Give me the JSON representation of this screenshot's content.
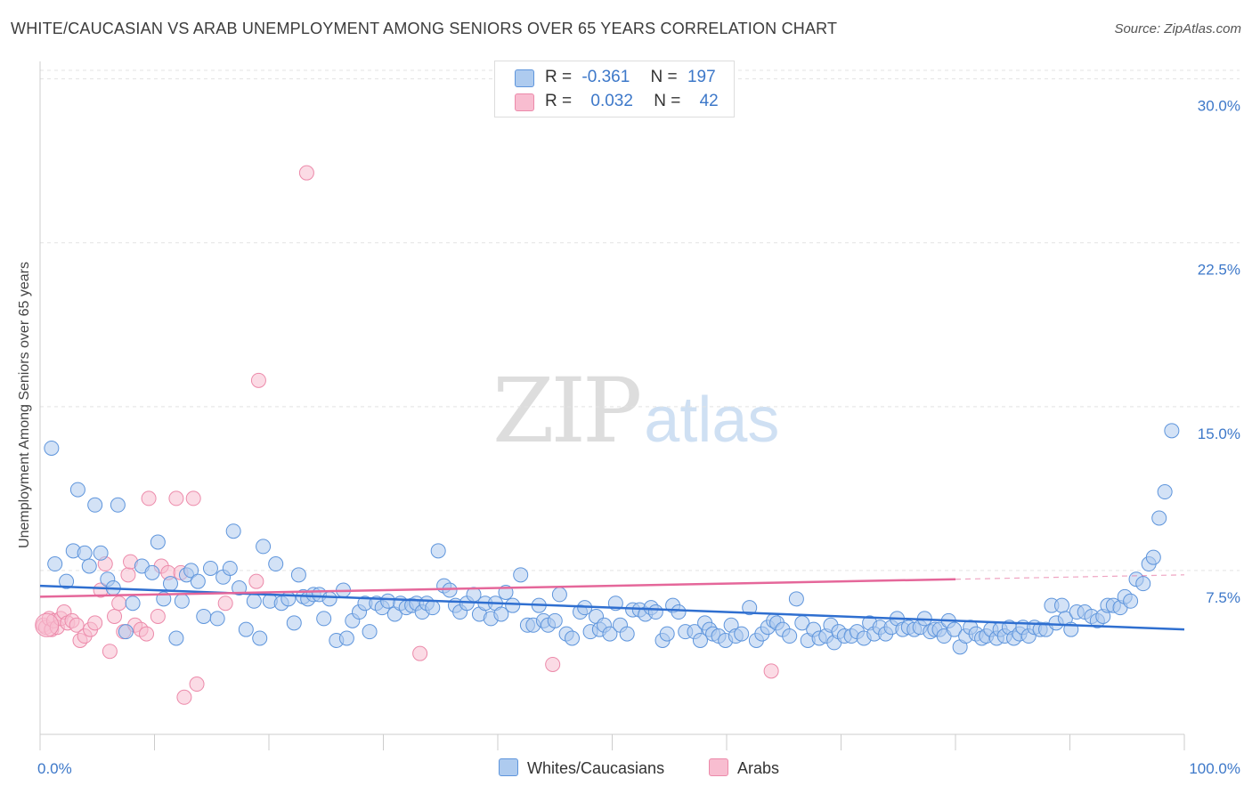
{
  "header": {
    "title": "WHITE/CAUCASIAN VS ARAB UNEMPLOYMENT AMONG SENIORS OVER 65 YEARS CORRELATION CHART",
    "source": "Source: ZipAtlas.com"
  },
  "watermark": {
    "zip": "ZIP",
    "atlas": "atlas"
  },
  "legend": {
    "r_label": "R =",
    "n_label": "N =",
    "rows": [
      {
        "r": "-0.361",
        "n": "197"
      },
      {
        "r": "0.032",
        "n": "42"
      }
    ]
  },
  "colors": {
    "white_fill": "#aecbef",
    "white_stroke": "#5e95dc",
    "white_line": "#2f6fd0",
    "arab_fill": "#f8bdd0",
    "arab_stroke": "#ec8aaa",
    "arab_line": "#e5679a",
    "grid": "#e3e3e3",
    "axis_text": "#3d78c9"
  },
  "chart_data": {
    "type": "scatter",
    "title": "WHITE/CAUCASIAN VS ARAB UNEMPLOYMENT AMONG SENIORS OVER 65 YEARS CORRELATION CHART",
    "xlabel": "",
    "ylabel": "Unemployment Among Seniors over 65 years",
    "xlim": [
      0,
      100
    ],
    "ylim": [
      0,
      30.8
    ],
    "x_ticks": [
      "0.0%",
      "100.0%"
    ],
    "y_ticks": [
      {
        "value": 7.5,
        "label": "7.5%"
      },
      {
        "value": 15.0,
        "label": "15.0%"
      },
      {
        "value": 22.5,
        "label": "22.5%"
      },
      {
        "value": 30.0,
        "label": "30.0%"
      }
    ],
    "grid": true,
    "legend_position": "top-center",
    "series": [
      {
        "name": "Whites/Caucasians",
        "r": -0.361,
        "n": 197,
        "trend": {
          "x": [
            0,
            100
          ],
          "y": [
            6.8,
            4.8
          ]
        },
        "points": [
          [
            1.0,
            13.1
          ],
          [
            1.3,
            7.8
          ],
          [
            2.3,
            7.0
          ],
          [
            2.9,
            8.4
          ],
          [
            3.3,
            11.2
          ],
          [
            3.9,
            8.3
          ],
          [
            4.3,
            7.7
          ],
          [
            4.8,
            10.5
          ],
          [
            5.3,
            8.3
          ],
          [
            5.9,
            7.1
          ],
          [
            6.4,
            6.7
          ],
          [
            6.8,
            10.5
          ],
          [
            7.5,
            4.7
          ],
          [
            8.1,
            6.0
          ],
          [
            8.9,
            7.7
          ],
          [
            9.8,
            7.4
          ],
          [
            10.3,
            8.8
          ],
          [
            10.8,
            6.2
          ],
          [
            11.4,
            6.9
          ],
          [
            11.9,
            4.4
          ],
          [
            12.4,
            6.1
          ],
          [
            12.8,
            7.3
          ],
          [
            13.2,
            7.5
          ],
          [
            13.8,
            7.0
          ],
          [
            14.3,
            5.4
          ],
          [
            14.9,
            7.6
          ],
          [
            15.5,
            5.3
          ],
          [
            16.0,
            7.2
          ],
          [
            16.6,
            7.6
          ],
          [
            16.9,
            9.3
          ],
          [
            17.4,
            6.7
          ],
          [
            18.0,
            4.8
          ],
          [
            18.7,
            6.1
          ],
          [
            19.2,
            4.4
          ],
          [
            19.5,
            8.6
          ],
          [
            20.1,
            6.1
          ],
          [
            20.6,
            7.8
          ],
          [
            21.1,
            6.0
          ],
          [
            21.7,
            6.2
          ],
          [
            22.2,
            5.1
          ],
          [
            22.6,
            7.3
          ],
          [
            23.0,
            6.3
          ],
          [
            23.4,
            6.2
          ],
          [
            23.9,
            6.4
          ],
          [
            24.4,
            6.4
          ],
          [
            24.8,
            5.3
          ],
          [
            25.3,
            6.2
          ],
          [
            25.9,
            4.3
          ],
          [
            26.5,
            6.6
          ],
          [
            26.8,
            4.4
          ],
          [
            27.3,
            5.2
          ],
          [
            27.9,
            5.6
          ],
          [
            28.4,
            6.0
          ],
          [
            28.8,
            4.7
          ],
          [
            29.4,
            6.0
          ],
          [
            29.9,
            5.8
          ],
          [
            30.4,
            6.1
          ],
          [
            31.0,
            5.5
          ],
          [
            31.5,
            6.0
          ],
          [
            32.0,
            5.8
          ],
          [
            32.5,
            5.9
          ],
          [
            32.9,
            6.0
          ],
          [
            33.4,
            5.6
          ],
          [
            33.8,
            6.0
          ],
          [
            34.3,
            5.8
          ],
          [
            34.8,
            8.4
          ],
          [
            35.3,
            6.8
          ],
          [
            35.8,
            6.6
          ],
          [
            36.3,
            5.9
          ],
          [
            36.7,
            5.6
          ],
          [
            37.3,
            6.0
          ],
          [
            37.9,
            6.4
          ],
          [
            38.4,
            5.5
          ],
          [
            38.9,
            6.0
          ],
          [
            39.4,
            5.3
          ],
          [
            39.8,
            6.0
          ],
          [
            40.3,
            5.5
          ],
          [
            40.7,
            6.5
          ],
          [
            41.3,
            5.9
          ],
          [
            42.0,
            7.3
          ],
          [
            42.6,
            5.0
          ],
          [
            43.1,
            5.0
          ],
          [
            43.6,
            5.9
          ],
          [
            44.0,
            5.2
          ],
          [
            44.4,
            5.0
          ],
          [
            45.0,
            5.2
          ],
          [
            45.4,
            6.4
          ],
          [
            46.0,
            4.6
          ],
          [
            46.5,
            4.4
          ],
          [
            47.2,
            5.6
          ],
          [
            47.6,
            5.8
          ],
          [
            48.1,
            4.7
          ],
          [
            48.6,
            5.4
          ],
          [
            48.9,
            4.8
          ],
          [
            49.3,
            5.0
          ],
          [
            49.8,
            4.6
          ],
          [
            50.3,
            6.0
          ],
          [
            50.7,
            5.0
          ],
          [
            51.3,
            4.6
          ],
          [
            51.8,
            5.7
          ],
          [
            52.4,
            5.7
          ],
          [
            52.9,
            5.5
          ],
          [
            53.4,
            5.8
          ],
          [
            53.8,
            5.6
          ],
          [
            54.4,
            4.3
          ],
          [
            54.8,
            4.6
          ],
          [
            55.3,
            5.9
          ],
          [
            55.8,
            5.6
          ],
          [
            56.4,
            4.7
          ],
          [
            57.2,
            4.7
          ],
          [
            57.7,
            4.3
          ],
          [
            58.1,
            5.1
          ],
          [
            58.5,
            4.8
          ],
          [
            58.8,
            4.6
          ],
          [
            59.3,
            4.5
          ],
          [
            59.9,
            4.3
          ],
          [
            60.4,
            5.0
          ],
          [
            60.8,
            4.5
          ],
          [
            61.3,
            4.6
          ],
          [
            62.0,
            5.8
          ],
          [
            62.6,
            4.3
          ],
          [
            63.1,
            4.6
          ],
          [
            63.6,
            4.9
          ],
          [
            64.1,
            5.2
          ],
          [
            64.4,
            5.1
          ],
          [
            64.9,
            4.8
          ],
          [
            65.5,
            4.5
          ],
          [
            66.1,
            6.2
          ],
          [
            66.6,
            5.1
          ],
          [
            67.1,
            4.3
          ],
          [
            67.6,
            4.8
          ],
          [
            68.1,
            4.4
          ],
          [
            68.7,
            4.5
          ],
          [
            69.1,
            5.0
          ],
          [
            69.4,
            4.2
          ],
          [
            69.8,
            4.7
          ],
          [
            70.3,
            4.5
          ],
          [
            70.9,
            4.5
          ],
          [
            71.4,
            4.7
          ],
          [
            72.0,
            4.4
          ],
          [
            72.5,
            5.1
          ],
          [
            72.9,
            4.6
          ],
          [
            73.4,
            4.9
          ],
          [
            73.9,
            4.6
          ],
          [
            74.4,
            4.9
          ],
          [
            74.9,
            5.3
          ],
          [
            75.4,
            4.8
          ],
          [
            75.9,
            4.9
          ],
          [
            76.4,
            4.8
          ],
          [
            76.9,
            4.9
          ],
          [
            77.3,
            5.3
          ],
          [
            77.8,
            4.7
          ],
          [
            78.2,
            4.8
          ],
          [
            78.6,
            4.8
          ],
          [
            79.0,
            4.5
          ],
          [
            79.4,
            5.2
          ],
          [
            79.9,
            4.8
          ],
          [
            80.4,
            4.0
          ],
          [
            80.9,
            4.5
          ],
          [
            81.3,
            4.9
          ],
          [
            81.8,
            4.6
          ],
          [
            82.3,
            4.4
          ],
          [
            82.7,
            4.5
          ],
          [
            83.1,
            4.8
          ],
          [
            83.6,
            4.4
          ],
          [
            83.9,
            4.8
          ],
          [
            84.3,
            4.5
          ],
          [
            84.7,
            4.9
          ],
          [
            85.1,
            4.4
          ],
          [
            85.6,
            4.6
          ],
          [
            85.9,
            4.9
          ],
          [
            86.4,
            4.5
          ],
          [
            86.9,
            4.9
          ],
          [
            87.4,
            4.8
          ],
          [
            87.9,
            4.8
          ],
          [
            88.4,
            5.9
          ],
          [
            88.8,
            5.1
          ],
          [
            89.3,
            5.9
          ],
          [
            89.6,
            5.3
          ],
          [
            90.1,
            4.8
          ],
          [
            90.6,
            5.6
          ],
          [
            91.3,
            5.6
          ],
          [
            91.9,
            5.4
          ],
          [
            92.4,
            5.2
          ],
          [
            92.9,
            5.4
          ],
          [
            93.3,
            5.9
          ],
          [
            93.8,
            5.9
          ],
          [
            94.4,
            5.8
          ],
          [
            94.8,
            6.3
          ],
          [
            95.3,
            6.1
          ],
          [
            95.8,
            7.1
          ],
          [
            96.4,
            6.9
          ],
          [
            96.9,
            7.8
          ],
          [
            97.3,
            8.1
          ],
          [
            97.8,
            9.9
          ],
          [
            98.3,
            11.1
          ],
          [
            98.9,
            13.9
          ]
        ]
      },
      {
        "name": "Arabs",
        "r": 0.032,
        "n": 42,
        "trend": {
          "x": [
            0,
            80
          ],
          "y": [
            6.3,
            7.1
          ]
        },
        "points": [
          [
            0.3,
            5.0
          ],
          [
            0.5,
            4.9
          ],
          [
            0.8,
            5.3
          ],
          [
            1.0,
            4.8
          ],
          [
            1.2,
            5.2
          ],
          [
            1.5,
            4.9
          ],
          [
            1.8,
            5.3
          ],
          [
            2.1,
            5.6
          ],
          [
            2.4,
            5.1
          ],
          [
            2.8,
            5.2
          ],
          [
            3.2,
            5.0
          ],
          [
            3.5,
            4.3
          ],
          [
            3.9,
            4.5
          ],
          [
            4.4,
            4.8
          ],
          [
            4.8,
            5.1
          ],
          [
            5.3,
            6.6
          ],
          [
            5.7,
            7.8
          ],
          [
            6.1,
            3.8
          ],
          [
            6.5,
            5.4
          ],
          [
            6.9,
            6.0
          ],
          [
            7.3,
            4.7
          ],
          [
            7.7,
            7.3
          ],
          [
            7.9,
            7.9
          ],
          [
            8.3,
            5.0
          ],
          [
            8.8,
            4.8
          ],
          [
            9.3,
            4.6
          ],
          [
            9.5,
            10.8
          ],
          [
            10.3,
            5.4
          ],
          [
            10.6,
            7.7
          ],
          [
            11.2,
            7.4
          ],
          [
            11.9,
            10.8
          ],
          [
            12.3,
            7.4
          ],
          [
            12.6,
            1.7
          ],
          [
            13.4,
            10.8
          ],
          [
            13.7,
            2.3
          ],
          [
            16.2,
            6.0
          ],
          [
            18.9,
            7.0
          ],
          [
            19.1,
            16.2
          ],
          [
            23.3,
            25.7
          ],
          [
            33.2,
            3.7
          ],
          [
            44.8,
            3.2
          ],
          [
            63.9,
            2.9
          ]
        ]
      }
    ]
  }
}
